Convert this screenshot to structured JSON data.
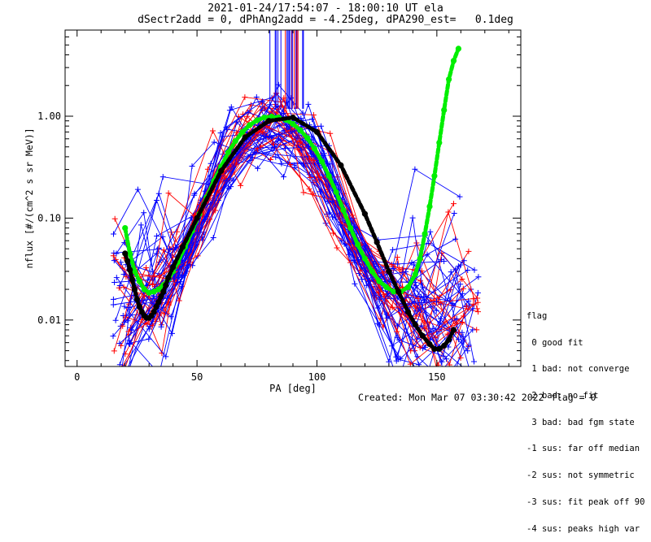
{
  "chart_data": {
    "type": "line",
    "title": "2021-01-24/17:54:07 - 18:00:10 UT ela",
    "subtitle": "dSectr2add = 0, dPhAng2add = -4.25deg, dPA290_est=   0.1deg",
    "xlabel": "PA [deg]",
    "ylabel": "nflux [#/(cm^2 s sr MeV)]",
    "xlim": [
      -5,
      185
    ],
    "ylim": [
      0.0035,
      7.0
    ],
    "yscale": "log",
    "xticks": [
      0,
      50,
      100,
      150
    ],
    "yticks": [
      {
        "value": 0.01,
        "label": "0.01"
      },
      {
        "value": 0.1,
        "label": "0.10"
      },
      {
        "value": 1.0,
        "label": "1.00"
      }
    ],
    "colors": {
      "axis": "#000000",
      "blue_series": "#0000ff",
      "red_series": "#ff0000",
      "green_fit": "#00ee00",
      "black_fit": "#000000"
    },
    "series": [
      {
        "color": "#00ee00",
        "x": [
          20,
          22,
          24,
          26,
          28,
          30,
          32,
          34,
          36,
          38,
          40,
          42,
          45,
          48,
          51,
          54,
          57,
          60,
          63,
          66,
          69,
          72,
          75,
          78,
          81,
          84,
          87,
          90,
          93,
          96,
          99,
          102,
          105,
          108,
          111,
          114,
          117,
          120,
          123,
          126,
          129,
          132,
          135,
          138,
          141,
          143,
          145,
          147,
          149,
          151,
          153,
          155,
          157,
          159
        ],
        "y": [
          0.08,
          0.045,
          0.03,
          0.024,
          0.02,
          0.0185,
          0.019,
          0.02,
          0.022,
          0.025,
          0.03,
          0.037,
          0.052,
          0.075,
          0.11,
          0.16,
          0.23,
          0.32,
          0.44,
          0.57,
          0.7,
          0.82,
          0.91,
          0.97,
          0.99,
          0.97,
          0.92,
          0.84,
          0.73,
          0.61,
          0.48,
          0.36,
          0.26,
          0.18,
          0.12,
          0.08,
          0.055,
          0.04,
          0.03,
          0.024,
          0.021,
          0.019,
          0.019,
          0.021,
          0.028,
          0.04,
          0.07,
          0.13,
          0.26,
          0.55,
          1.15,
          2.3,
          3.5,
          4.6
        ]
      },
      {
        "color": "#000000",
        "x": [
          20,
          21,
          22,
          23,
          24,
          25,
          26,
          27,
          28,
          29,
          30,
          31,
          32,
          33,
          34,
          35,
          36,
          37,
          38,
          40,
          44,
          50,
          60,
          70,
          80,
          90,
          100,
          110,
          120,
          125,
          130,
          134,
          138,
          141,
          144,
          147,
          149,
          151,
          153,
          155,
          157
        ],
        "y": [
          0.045,
          0.038,
          0.031,
          0.025,
          0.02,
          0.016,
          0.0135,
          0.012,
          0.011,
          0.0105,
          0.0105,
          0.011,
          0.012,
          0.0135,
          0.015,
          0.017,
          0.019,
          0.022,
          0.026,
          0.033,
          0.052,
          0.1,
          0.29,
          0.62,
          0.9,
          0.97,
          0.7,
          0.33,
          0.11,
          0.058,
          0.03,
          0.019,
          0.012,
          0.009,
          0.007,
          0.0058,
          0.0052,
          0.0052,
          0.0056,
          0.0064,
          0.008
        ]
      }
    ]
  },
  "legend": {
    "title": "flag",
    "items": [
      " 0 good fit",
      " 1 bad: not converge",
      " 2 bad: no fit",
      " 3 bad: bad fgm state",
      "-1 sus: far off median",
      "-2 sus: not symmetric",
      "-3 sus: fit peak off 90",
      "-4 sus: peaks high var"
    ]
  },
  "footer": {
    "created": "Created: Mon Mar 07 03:30:42 2022",
    "flag": "flag = 0"
  }
}
